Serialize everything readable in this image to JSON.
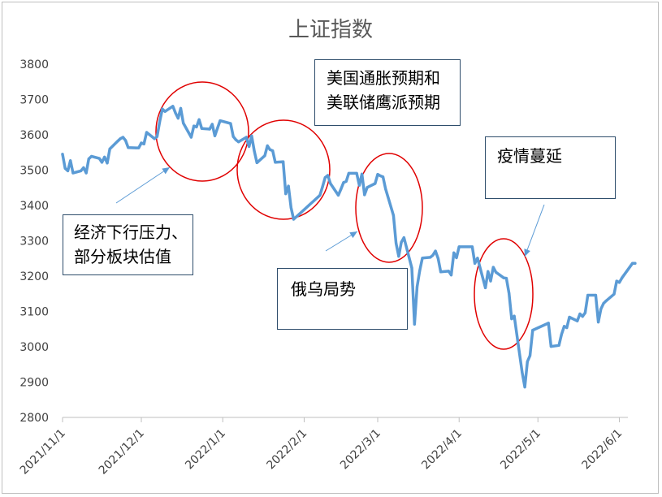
{
  "chart_data": {
    "type": "line",
    "title": "上证指数",
    "xlabel": "",
    "ylabel": "",
    "ylim": [
      2800,
      3800
    ],
    "yticks": [
      2800,
      2900,
      3000,
      3100,
      3200,
      3300,
      3400,
      3500,
      3600,
      3700,
      3800
    ],
    "xticks": [
      "2021/11/1",
      "2021/12/1",
      "2022/1/1",
      "2022/2/1",
      "2022/3/1",
      "2022/4/1",
      "2022/5/1",
      "2022/6/1"
    ],
    "grid": false,
    "legend": "none",
    "line_color": "#5b9bd5",
    "series": [
      {
        "values": [
          [
            "2021-11-01",
            3545
          ],
          [
            "2021-11-02",
            3505
          ],
          [
            "2021-11-03",
            3498
          ],
          [
            "2021-11-04",
            3527
          ],
          [
            "2021-11-05",
            3492
          ],
          [
            "2021-11-08",
            3498
          ],
          [
            "2021-11-09",
            3507
          ],
          [
            "2021-11-10",
            3492
          ],
          [
            "2021-11-11",
            3532
          ],
          [
            "2021-11-12",
            3539
          ],
          [
            "2021-11-15",
            3533
          ],
          [
            "2021-11-16",
            3522
          ],
          [
            "2021-11-17",
            3537
          ],
          [
            "2021-11-18",
            3520
          ],
          [
            "2021-11-19",
            3560
          ],
          [
            "2021-11-22",
            3582
          ],
          [
            "2021-11-23",
            3589
          ],
          [
            "2021-11-24",
            3593
          ],
          [
            "2021-11-25",
            3584
          ],
          [
            "2021-11-26",
            3564
          ],
          [
            "2021-11-29",
            3563
          ],
          [
            "2021-11-30",
            3563
          ],
          [
            "2021-12-01",
            3577
          ],
          [
            "2021-12-02",
            3574
          ],
          [
            "2021-12-03",
            3607
          ],
          [
            "2021-12-06",
            3589
          ],
          [
            "2021-12-07",
            3595
          ],
          [
            "2021-12-08",
            3637
          ],
          [
            "2021-12-09",
            3673
          ],
          [
            "2021-12-10",
            3666
          ],
          [
            "2021-12-13",
            3681
          ],
          [
            "2021-12-14",
            3662
          ],
          [
            "2021-12-15",
            3647
          ],
          [
            "2021-12-16",
            3675
          ],
          [
            "2021-12-17",
            3633
          ],
          [
            "2021-12-20",
            3593
          ],
          [
            "2021-12-21",
            3625
          ],
          [
            "2021-12-22",
            3622
          ],
          [
            "2021-12-23",
            3643
          ],
          [
            "2021-12-24",
            3618
          ],
          [
            "2021-12-27",
            3616
          ],
          [
            "2021-12-28",
            3630
          ],
          [
            "2021-12-29",
            3597
          ],
          [
            "2021-12-30",
            3619
          ],
          [
            "2021-12-31",
            3640
          ],
          [
            "2022-01-04",
            3632
          ],
          [
            "2022-01-05",
            3595
          ],
          [
            "2022-01-06",
            3586
          ],
          [
            "2022-01-07",
            3580
          ],
          [
            "2022-01-10",
            3593
          ],
          [
            "2022-01-11",
            3567
          ],
          [
            "2022-01-12",
            3597
          ],
          [
            "2022-01-13",
            3555
          ],
          [
            "2022-01-14",
            3521
          ],
          [
            "2022-01-17",
            3541
          ],
          [
            "2022-01-18",
            3569
          ],
          [
            "2022-01-19",
            3558
          ],
          [
            "2022-01-20",
            3555
          ],
          [
            "2022-01-21",
            3522
          ],
          [
            "2022-01-24",
            3524
          ],
          [
            "2022-01-25",
            3433
          ],
          [
            "2022-01-26",
            3455
          ],
          [
            "2022-01-27",
            3394
          ],
          [
            "2022-01-28",
            3361
          ],
          [
            "2022-02-07",
            3429
          ],
          [
            "2022-02-08",
            3453
          ],
          [
            "2022-02-09",
            3479
          ],
          [
            "2022-02-10",
            3485
          ],
          [
            "2022-02-11",
            3462
          ],
          [
            "2022-02-14",
            3429
          ],
          [
            "2022-02-15",
            3446
          ],
          [
            "2022-02-16",
            3465
          ],
          [
            "2022-02-17",
            3468
          ],
          [
            "2022-02-18",
            3491
          ],
          [
            "2022-02-21",
            3491
          ],
          [
            "2022-02-22",
            3457
          ],
          [
            "2022-02-23",
            3489
          ],
          [
            "2022-02-24",
            3430
          ],
          [
            "2022-02-25",
            3451
          ],
          [
            "2022-02-28",
            3462
          ],
          [
            "2022-03-01",
            3488
          ],
          [
            "2022-03-02",
            3484
          ],
          [
            "2022-03-03",
            3481
          ],
          [
            "2022-03-04",
            3447
          ],
          [
            "2022-03-07",
            3372
          ],
          [
            "2022-03-08",
            3293
          ],
          [
            "2022-03-09",
            3256
          ],
          [
            "2022-03-10",
            3296
          ],
          [
            "2022-03-11",
            3309
          ],
          [
            "2022-03-14",
            3223
          ],
          [
            "2022-03-15",
            3064
          ],
          [
            "2022-03-16",
            3170
          ],
          [
            "2022-03-17",
            3215
          ],
          [
            "2022-03-18",
            3251
          ],
          [
            "2022-03-21",
            3253
          ],
          [
            "2022-03-22",
            3259
          ],
          [
            "2022-03-23",
            3271
          ],
          [
            "2022-03-24",
            3250
          ],
          [
            "2022-03-25",
            3212
          ],
          [
            "2022-03-28",
            3214
          ],
          [
            "2022-03-29",
            3203
          ],
          [
            "2022-03-30",
            3266
          ],
          [
            "2022-03-31",
            3252
          ],
          [
            "2022-04-01",
            3283
          ],
          [
            "2022-04-06",
            3283
          ],
          [
            "2022-04-07",
            3236
          ],
          [
            "2022-04-08",
            3251
          ],
          [
            "2022-04-11",
            3167
          ],
          [
            "2022-04-12",
            3213
          ],
          [
            "2022-04-13",
            3186
          ],
          [
            "2022-04-14",
            3225
          ],
          [
            "2022-04-15",
            3211
          ],
          [
            "2022-04-18",
            3195
          ],
          [
            "2022-04-19",
            3194
          ],
          [
            "2022-04-20",
            3151
          ],
          [
            "2022-04-21",
            3079
          ],
          [
            "2022-04-22",
            3087
          ],
          [
            "2022-04-25",
            2928
          ],
          [
            "2022-04-26",
            2886
          ],
          [
            "2022-04-27",
            2958
          ],
          [
            "2022-04-28",
            2975
          ],
          [
            "2022-04-29",
            3047
          ],
          [
            "2022-05-05",
            3067
          ],
          [
            "2022-05-06",
            3001
          ],
          [
            "2022-05-09",
            3004
          ],
          [
            "2022-05-10",
            3035
          ],
          [
            "2022-05-11",
            3058
          ],
          [
            "2022-05-12",
            3054
          ],
          [
            "2022-05-13",
            3084
          ],
          [
            "2022-05-16",
            3073
          ],
          [
            "2022-05-17",
            3093
          ],
          [
            "2022-05-18",
            3086
          ],
          [
            "2022-05-19",
            3096
          ],
          [
            "2022-05-20",
            3146
          ],
          [
            "2022-05-23",
            3146
          ],
          [
            "2022-05-24",
            3070
          ],
          [
            "2022-05-25",
            3107
          ],
          [
            "2022-05-26",
            3123
          ],
          [
            "2022-05-27",
            3130
          ],
          [
            "2022-05-30",
            3149
          ],
          [
            "2022-05-31",
            3186
          ],
          [
            "2022-06-01",
            3182
          ],
          [
            "2022-06-02",
            3195
          ],
          [
            "2022-06-06",
            3236
          ],
          [
            "2022-06-07",
            3236
          ]
        ]
      }
    ],
    "annotations": [
      {
        "id": "ann-economy",
        "text_lines": [
          "经济下行压力、",
          "部分板块估值"
        ]
      },
      {
        "id": "ann-us",
        "text_lines": [
          "美国通胀预期和",
          "美联储鹰派预期"
        ]
      },
      {
        "id": "ann-russia",
        "text_lines": [
          "俄乌局势"
        ]
      },
      {
        "id": "ann-epidemic",
        "text_lines": [
          "疫情蔓延"
        ]
      }
    ],
    "highlight_color": "#e00000"
  }
}
